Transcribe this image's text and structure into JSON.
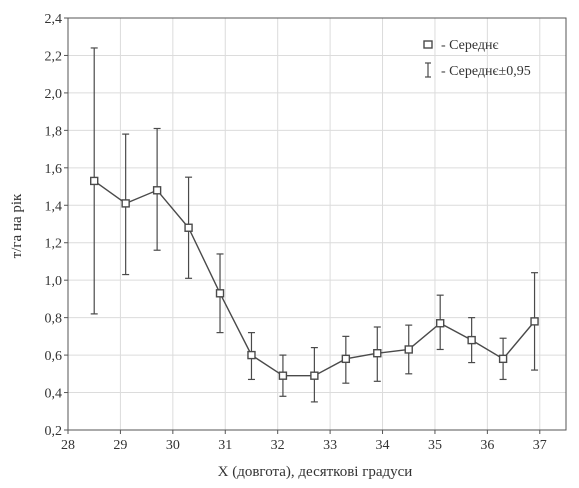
{
  "chart_data": {
    "type": "line",
    "title": "",
    "xlabel": "X (довгота), десяткові градуси",
    "ylabel": "т/га на рік",
    "xlim": [
      28,
      37.5
    ],
    "ylim": [
      0.2,
      2.4
    ],
    "xticks": [
      "28",
      "29",
      "30",
      "31",
      "32",
      "33",
      "34",
      "35",
      "36",
      "37"
    ],
    "yticks": [
      "0,2",
      "0,4",
      "0,6",
      "0,8",
      "1,0",
      "1,2",
      "1,4",
      "1,6",
      "1,8",
      "2,0",
      "2,2",
      "2,4"
    ],
    "grid": true,
    "legend_position": "top-right",
    "legend": {
      "mean": "- Середнє",
      "ci": "- Середнє±0,95"
    },
    "series": [
      {
        "x": [
          28.5,
          29.1,
          29.7,
          30.3,
          30.9,
          31.5,
          32.1,
          32.7,
          33.3,
          33.9,
          34.5,
          35.1,
          35.7,
          36.3,
          36.9
        ],
        "mean": [
          1.53,
          1.41,
          1.48,
          1.28,
          0.93,
          0.6,
          0.49,
          0.49,
          0.58,
          0.61,
          0.63,
          0.77,
          0.68,
          0.58,
          0.78
        ],
        "lower": [
          0.82,
          1.03,
          1.16,
          1.01,
          0.72,
          0.47,
          0.38,
          0.35,
          0.45,
          0.46,
          0.5,
          0.63,
          0.56,
          0.47,
          0.52
        ],
        "upper": [
          2.24,
          1.78,
          1.81,
          1.55,
          1.14,
          0.72,
          0.6,
          0.64,
          0.7,
          0.75,
          0.76,
          0.92,
          0.8,
          0.69,
          1.04
        ]
      }
    ],
    "colors": {
      "series": "#4a4a4a",
      "grid": "#dcdcdc",
      "frame": "#555555"
    }
  }
}
